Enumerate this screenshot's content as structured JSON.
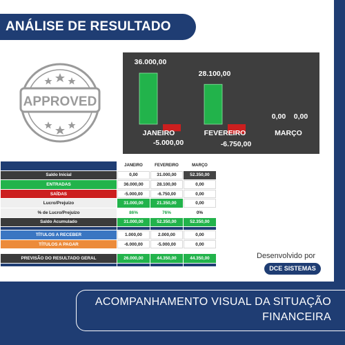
{
  "header": {
    "title": "ANÁLISE DE RESULTADO"
  },
  "stamp": {
    "text": "APPROVED"
  },
  "chart_data": {
    "type": "bar",
    "categories": [
      "JANEIRO",
      "FEVEREIRO",
      "MARÇO"
    ],
    "series": [
      {
        "values": [
          36000,
          28100,
          0
        ],
        "color": "#22b34b"
      },
      {
        "values": [
          -5000,
          -6750,
          0
        ],
        "color": "#cc1f1f"
      }
    ],
    "data_labels_positive": [
      "36.000,00",
      "28.100,00",
      "0,00"
    ],
    "data_labels_negative": [
      "-5.000,00",
      "-6.750,00",
      "0,00"
    ],
    "title": "",
    "xlabel": "",
    "ylabel": "",
    "grid": false,
    "legend": false
  },
  "table": {
    "headers": [
      "JANEIRO",
      "FEVEREIRO",
      "MARÇO"
    ],
    "rows": [
      {
        "label": "Saldo Inicial",
        "values": [
          "0,00",
          "31.000,00",
          "52.350,00"
        ]
      },
      {
        "label": "ENTRADAS",
        "values": [
          "36.000,00",
          "28.100,00",
          "0,00"
        ]
      },
      {
        "label": "SAÍDAS",
        "values": [
          "-5.000,00",
          "-6.750,00",
          "0,00"
        ]
      },
      {
        "label": "Lucro/Prejuízo",
        "values": [
          "31.000,00",
          "21.350,00",
          "0,00"
        ]
      },
      {
        "label": "% de Lucro/Prejuízo",
        "values": [
          "86%",
          "76%",
          "0%"
        ]
      },
      {
        "label": "Saldo Acumulado",
        "values": [
          "31.000,00",
          "52.350,00",
          "52.350,00"
        ]
      },
      {
        "label": "TÍTULOS A RECEBER",
        "values": [
          "1.000,00",
          "2.000,00",
          "0,00"
        ]
      },
      {
        "label": "TÍTULOS A PAGAR",
        "values": [
          "-6.000,00",
          "-5.000,00",
          "0,00"
        ]
      },
      {
        "label": "PREVISÃO DO RESULTADO GERAL",
        "values": [
          "26.000,00",
          "44.350,00",
          "44.350,00"
        ]
      }
    ]
  },
  "developer": {
    "label": "Desenvolvido por",
    "name": "DCE SISTEMAS"
  },
  "banner": {
    "line1": "ACOMPANHAMENTO VISUAL DA SITUAÇÃO",
    "line2": "FINANCEIRA"
  },
  "colors": {
    "navy": "#1f3d73",
    "green": "#22b34b",
    "red": "#cc1f1f",
    "orange": "#ec8b3a",
    "blue": "#3a76c2"
  }
}
